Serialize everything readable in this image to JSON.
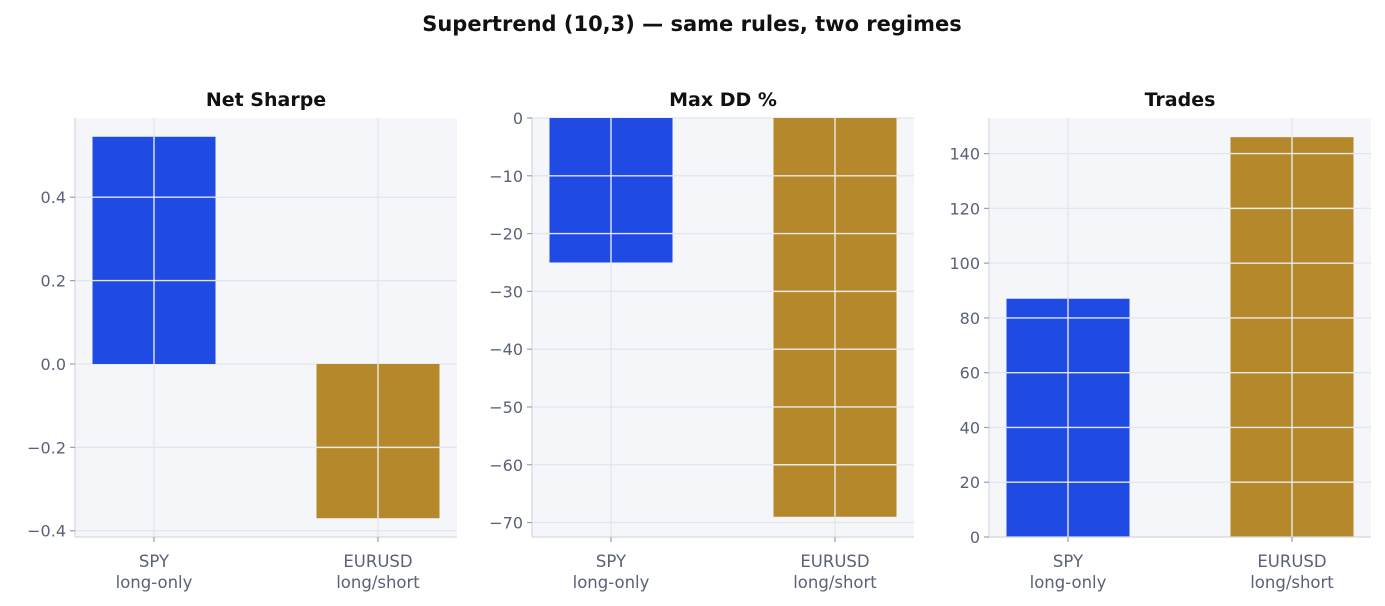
{
  "figure": {
    "title": "Supertrend (10,3) — same rules, two regimes"
  },
  "chart_data": [
    {
      "type": "bar",
      "title": "Net Sharpe",
      "categories": [
        "SPY\nlong-only",
        "EURUSD\nlong/short"
      ],
      "values": [
        0.545,
        -0.37
      ],
      "ylim": [
        -0.415,
        0.59
      ],
      "yticks": [
        -0.4,
        -0.2,
        0.0,
        0.2,
        0.4
      ],
      "ytick_labels": [
        "−0.4",
        "−0.2",
        "0.0",
        "0.2",
        "0.4"
      ],
      "colors": [
        "#1f4ae3",
        "#b5892b"
      ],
      "grid": true
    },
    {
      "type": "bar",
      "title": "Max DD %",
      "categories": [
        "SPY\nlong-only",
        "EURUSD\nlong/short"
      ],
      "values": [
        -25.0,
        -69.0
      ],
      "ylim": [
        -72.5,
        0
      ],
      "yticks": [
        -70,
        -60,
        -50,
        -40,
        -30,
        -20,
        -10,
        0
      ],
      "ytick_labels": [
        "−70",
        "−60",
        "−50",
        "−40",
        "−30",
        "−20",
        "−10",
        "0"
      ],
      "colors": [
        "#1f4ae3",
        "#b5892b"
      ],
      "grid": true
    },
    {
      "type": "bar",
      "title": "Trades",
      "categories": [
        "SPY\nlong-only",
        "EURUSD\nlong/short"
      ],
      "values": [
        87,
        146
      ],
      "ylim": [
        0,
        153
      ],
      "yticks": [
        0,
        20,
        40,
        60,
        80,
        100,
        120,
        140
      ],
      "ytick_labels": [
        "0",
        "20",
        "40",
        "60",
        "80",
        "100",
        "120",
        "140"
      ],
      "colors": [
        "#1f4ae3",
        "#b5892b"
      ],
      "grid": true
    }
  ]
}
